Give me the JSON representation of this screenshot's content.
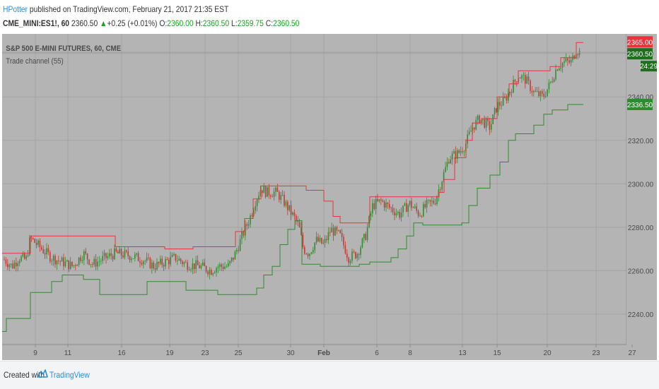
{
  "header": {
    "author": "HPotter",
    "published_text": " published on TradingView.com, February 21, 2017 21:35 EST",
    "symbol": "CME_MINI:ES1!, 60",
    "last": "2360.50",
    "change": "+0.25 (+0.01%)",
    "o_label": "O:",
    "o_value": "2360.00",
    "h_label": "H:",
    "h_value": "2360.50",
    "l_label": "L:",
    "l_value": "2359.75",
    "c_label": "C:",
    "c_value": "2360.50"
  },
  "footer": {
    "created_with": "Created with",
    "brand": "TradingView"
  },
  "colors": {
    "plot_bg": "#b4b4b4",
    "grid": "#a3a3a3",
    "up_candle": "#2f8f2f",
    "down_candle": "#c23a3a",
    "upper_channel": "#e8333a",
    "lower_channel": "#2e8b2e",
    "author_link": "#2c8fd6"
  },
  "chart_data": {
    "type": "candlestick",
    "instrument_label": "S&P 500 E-MINI FUTURES, 60, CME",
    "indicator_label": "Trade channel (55)",
    "y_ticks": [
      2240,
      2260,
      2280,
      2300,
      2320,
      2340,
      2360
    ],
    "ylim": [
      2226,
      2369
    ],
    "x_tick_labels": [
      "9",
      "11",
      "16",
      "19",
      "23",
      "25",
      "30",
      "Feb",
      "6",
      "8",
      "13",
      "15",
      "20",
      "23",
      "27"
    ],
    "price_labels": {
      "upper_channel": "2365.00",
      "last_price": "2360.50",
      "countdown": "24:29",
      "lower_channel": "2336.50"
    },
    "price_path": [
      [
        0,
        2266
      ],
      [
        14,
        2262
      ],
      [
        24,
        2266
      ],
      [
        34,
        2265
      ],
      [
        40,
        2275
      ],
      [
        56,
        2270
      ],
      [
        70,
        2266
      ],
      [
        85,
        2264
      ],
      [
        100,
        2262
      ],
      [
        115,
        2268
      ],
      [
        128,
        2263
      ],
      [
        140,
        2265
      ],
      [
        160,
        2268
      ],
      [
        180,
        2267
      ],
      [
        200,
        2265
      ],
      [
        215,
        2262
      ],
      [
        230,
        2264
      ],
      [
        245,
        2266
      ],
      [
        260,
        2263
      ],
      [
        280,
        2262
      ],
      [
        295,
        2260
      ],
      [
        305,
        2262
      ],
      [
        320,
        2262
      ],
      [
        330,
        2268
      ],
      [
        342,
        2278
      ],
      [
        350,
        2284
      ],
      [
        358,
        2292
      ],
      [
        366,
        2298
      ],
      [
        374,
        2296
      ],
      [
        388,
        2296
      ],
      [
        398,
        2292
      ],
      [
        408,
        2287
      ],
      [
        414,
        2284
      ],
      [
        420,
        2280
      ],
      [
        426,
        2270
      ],
      [
        434,
        2268
      ],
      [
        444,
        2274
      ],
      [
        455,
        2272
      ],
      [
        465,
        2279
      ],
      [
        478,
        2276
      ],
      [
        490,
        2266
      ],
      [
        502,
        2268
      ],
      [
        514,
        2276
      ],
      [
        524,
        2290
      ],
      [
        536,
        2292
      ],
      [
        548,
        2289
      ],
      [
        562,
        2286
      ],
      [
        576,
        2291
      ],
      [
        590,
        2286
      ],
      [
        600,
        2290
      ],
      [
        612,
        2292
      ],
      [
        622,
        2302
      ],
      [
        632,
        2312
      ],
      [
        645,
        2314
      ],
      [
        655,
        2318
      ],
      [
        665,
        2326
      ],
      [
        675,
        2330
      ],
      [
        690,
        2326
      ],
      [
        700,
        2336
      ],
      [
        710,
        2338
      ],
      [
        720,
        2344
      ],
      [
        730,
        2350
      ],
      [
        740,
        2348
      ],
      [
        752,
        2342
      ],
      [
        765,
        2340
      ],
      [
        775,
        2346
      ],
      [
        785,
        2354
      ],
      [
        795,
        2356
      ],
      [
        805,
        2356
      ],
      [
        812,
        2362
      ],
      [
        818,
        2360
      ]
    ],
    "upper_channel_steps": [
      [
        0,
        2268
      ],
      [
        40,
        2276
      ],
      [
        130,
        2276
      ],
      [
        160,
        2271
      ],
      [
        230,
        2270
      ],
      [
        270,
        2271
      ],
      [
        330,
        2278
      ],
      [
        343,
        2284
      ],
      [
        355,
        2293
      ],
      [
        366,
        2299
      ],
      [
        430,
        2297
      ],
      [
        455,
        2292
      ],
      [
        468,
        2285
      ],
      [
        478,
        2282
      ],
      [
        520,
        2294
      ],
      [
        572,
        2294
      ],
      [
        618,
        2296
      ],
      [
        625,
        2302
      ],
      [
        640,
        2312
      ],
      [
        656,
        2320
      ],
      [
        665,
        2328
      ],
      [
        678,
        2330
      ],
      [
        700,
        2340
      ],
      [
        717,
        2346
      ],
      [
        730,
        2352
      ],
      [
        775,
        2354
      ],
      [
        790,
        2358
      ],
      [
        812,
        2365
      ],
      [
        822,
        2365
      ]
    ],
    "lower_channel_steps": [
      [
        0,
        2232
      ],
      [
        6,
        2238
      ],
      [
        40,
        2250
      ],
      [
        70,
        2255
      ],
      [
        85,
        2258
      ],
      [
        115,
        2256
      ],
      [
        138,
        2249
      ],
      [
        205,
        2255
      ],
      [
        255,
        2255
      ],
      [
        260,
        2251
      ],
      [
        305,
        2249
      ],
      [
        360,
        2252
      ],
      [
        370,
        2258
      ],
      [
        382,
        2262
      ],
      [
        393,
        2272
      ],
      [
        404,
        2279
      ],
      [
        414,
        2283
      ],
      [
        424,
        2263
      ],
      [
        450,
        2262
      ],
      [
        505,
        2263
      ],
      [
        520,
        2264
      ],
      [
        550,
        2266
      ],
      [
        560,
        2270
      ],
      [
        572,
        2276
      ],
      [
        582,
        2282
      ],
      [
        595,
        2281
      ],
      [
        650,
        2282
      ],
      [
        660,
        2290
      ],
      [
        672,
        2298
      ],
      [
        690,
        2304
      ],
      [
        704,
        2310
      ],
      [
        716,
        2320
      ],
      [
        726,
        2323
      ],
      [
        752,
        2327
      ],
      [
        766,
        2332
      ],
      [
        778,
        2334
      ],
      [
        800,
        2336.5
      ],
      [
        822,
        2336.5
      ]
    ]
  }
}
